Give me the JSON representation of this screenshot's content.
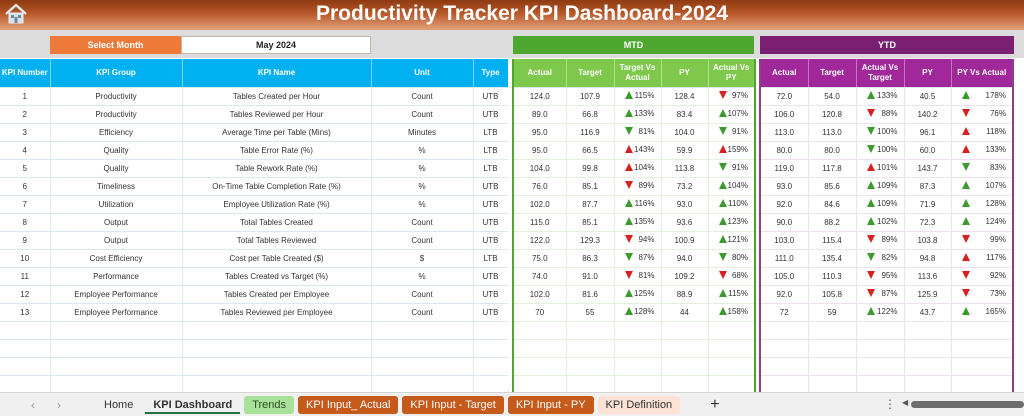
{
  "header": {
    "title": "Productivity Tracker KPI Dashboard-2024",
    "home_icon": "home-icon"
  },
  "month_selector": {
    "label": "Select Month",
    "value": "May 2024"
  },
  "sections": {
    "mtd": "MTD",
    "ytd": "YTD"
  },
  "kpi_columns": [
    "KPI Number",
    "KPI Group",
    "KPI Name",
    "Unit",
    "Type"
  ],
  "mtd_columns": [
    "Actual",
    "Target",
    "Target Vs Actual",
    "PY",
    "Actual Vs PY"
  ],
  "ytd_columns": [
    "Actual",
    "Target",
    "Actual Vs Target",
    "PY",
    "PY Vs Actual"
  ],
  "colors": {
    "title_gradient": "#b8582a",
    "select_month": "#ee7a3a",
    "kpi_header": "#00b0f0",
    "mtd": "#4ea72e",
    "mtd_header": "#7ec84b",
    "ytd": "#7a1f72",
    "ytd_header": "#a0289a",
    "up_good": "#3d9a2f",
    "bad": "#d8201f"
  },
  "rows": [
    {
      "num": "1",
      "group": "Productivity",
      "name": "Tables Created per Hour",
      "unit": "Count",
      "type": "UTB",
      "mtd": {
        "actual": "124.0",
        "target": "107.9",
        "tva": "115%",
        "tva_icon": "up-green",
        "py": "128.4",
        "avp": "97%",
        "avp_icon": "down-red"
      },
      "ytd": {
        "actual": "72.0",
        "target": "54.0",
        "avt": "133%",
        "avt_icon": "up-green",
        "py": "40.5",
        "pva": "178%",
        "pva_icon": "up-green"
      }
    },
    {
      "num": "2",
      "group": "Productivity",
      "name": "Tables Reviewed per Hour",
      "unit": "Count",
      "type": "UTB",
      "mtd": {
        "actual": "89.0",
        "target": "66.8",
        "tva": "133%",
        "tva_icon": "up-green",
        "py": "83.4",
        "avp": "107%",
        "avp_icon": "up-green"
      },
      "ytd": {
        "actual": "106.0",
        "target": "120.8",
        "avt": "88%",
        "avt_icon": "down-red",
        "py": "140.2",
        "pva": "76%",
        "pva_icon": "down-red"
      }
    },
    {
      "num": "3",
      "group": "Efficiency",
      "name": "Average Time per Table (Mins)",
      "unit": "Minutes",
      "type": "LTB",
      "mtd": {
        "actual": "95.0",
        "target": "116.9",
        "tva": "81%",
        "tva_icon": "down-green",
        "py": "104.0",
        "avp": "91%",
        "avp_icon": "down-green"
      },
      "ytd": {
        "actual": "113.0",
        "target": "113.0",
        "avt": "100%",
        "avt_icon": "down-green",
        "py": "96.1",
        "pva": "118%",
        "pva_icon": "up-red"
      }
    },
    {
      "num": "4",
      "group": "Quality",
      "name": "Table Error Rate (%)",
      "unit": "%",
      "type": "LTB",
      "mtd": {
        "actual": "95.0",
        "target": "66.5",
        "tva": "143%",
        "tva_icon": "up-red",
        "py": "59.9",
        "avp": "159%",
        "avp_icon": "up-red"
      },
      "ytd": {
        "actual": "80.0",
        "target": "80.0",
        "avt": "100%",
        "avt_icon": "down-green",
        "py": "60.0",
        "pva": "133%",
        "pva_icon": "up-red"
      }
    },
    {
      "num": "5",
      "group": "Quality",
      "name": "Table Rework Rate (%)",
      "unit": "%",
      "type": "LTB",
      "mtd": {
        "actual": "104.0",
        "target": "99.8",
        "tva": "104%",
        "tva_icon": "up-red",
        "py": "113.8",
        "avp": "91%",
        "avp_icon": "down-green"
      },
      "ytd": {
        "actual": "119.0",
        "target": "117.8",
        "avt": "101%",
        "avt_icon": "up-red",
        "py": "143.7",
        "pva": "83%",
        "pva_icon": "down-green"
      }
    },
    {
      "num": "6",
      "group": "Timeliness",
      "name": "On-Time Table Completion Rate (%)",
      "unit": "%",
      "type": "UTB",
      "mtd": {
        "actual": "76.0",
        "target": "85.1",
        "tva": "89%",
        "tva_icon": "down-red",
        "py": "73.2",
        "avp": "104%",
        "avp_icon": "up-green"
      },
      "ytd": {
        "actual": "93.0",
        "target": "85.6",
        "avt": "109%",
        "avt_icon": "up-green",
        "py": "87.3",
        "pva": "107%",
        "pva_icon": "up-green"
      }
    },
    {
      "num": "7",
      "group": "Utilization",
      "name": "Employee Utilization Rate (%)",
      "unit": "%",
      "type": "UTB",
      "mtd": {
        "actual": "102.0",
        "target": "87.7",
        "tva": "116%",
        "tva_icon": "up-green",
        "py": "93.0",
        "avp": "110%",
        "avp_icon": "up-green"
      },
      "ytd": {
        "actual": "92.0",
        "target": "84.6",
        "avt": "109%",
        "avt_icon": "up-green",
        "py": "71.9",
        "pva": "128%",
        "pva_icon": "up-green"
      }
    },
    {
      "num": "8",
      "group": "Output",
      "name": "Total Tables Created",
      "unit": "Count",
      "type": "UTB",
      "mtd": {
        "actual": "115.0",
        "target": "85.1",
        "tva": "135%",
        "tva_icon": "up-green",
        "py": "93.6",
        "avp": "123%",
        "avp_icon": "up-green"
      },
      "ytd": {
        "actual": "90.0",
        "target": "88.2",
        "avt": "102%",
        "avt_icon": "up-green",
        "py": "72.3",
        "pva": "124%",
        "pva_icon": "up-green"
      }
    },
    {
      "num": "9",
      "group": "Output",
      "name": "Total Tables Reviewed",
      "unit": "Count",
      "type": "UTB",
      "mtd": {
        "actual": "122.0",
        "target": "129.3",
        "tva": "94%",
        "tva_icon": "down-red",
        "py": "100.9",
        "avp": "121%",
        "avp_icon": "up-green"
      },
      "ytd": {
        "actual": "103.0",
        "target": "115.4",
        "avt": "89%",
        "avt_icon": "down-red",
        "py": "103.8",
        "pva": "99%",
        "pva_icon": "down-red"
      }
    },
    {
      "num": "10",
      "group": "Cost Efficiency",
      "name": "Cost per Table Created ($)",
      "unit": "$",
      "type": "LTB",
      "mtd": {
        "actual": "75.0",
        "target": "86.3",
        "tva": "87%",
        "tva_icon": "down-green",
        "py": "94.0",
        "avp": "80%",
        "avp_icon": "down-green"
      },
      "ytd": {
        "actual": "111.0",
        "target": "135.4",
        "avt": "82%",
        "avt_icon": "down-green",
        "py": "94.8",
        "pva": "117%",
        "pva_icon": "up-red"
      }
    },
    {
      "num": "11",
      "group": "Performance",
      "name": "Tables Created vs Target (%)",
      "unit": "%",
      "type": "UTB",
      "mtd": {
        "actual": "74.0",
        "target": "91.0",
        "tva": "81%",
        "tva_icon": "down-red",
        "py": "109.2",
        "avp": "68%",
        "avp_icon": "down-red"
      },
      "ytd": {
        "actual": "105.0",
        "target": "110.3",
        "avt": "95%",
        "avt_icon": "down-red",
        "py": "113.6",
        "pva": "92%",
        "pva_icon": "down-red"
      }
    },
    {
      "num": "12",
      "group": "Employee Performance",
      "name": "Tables Created per Employee",
      "unit": "Count",
      "type": "UTB",
      "mtd": {
        "actual": "102.0",
        "target": "81.6",
        "tva": "125%",
        "tva_icon": "up-green",
        "py": "88.9",
        "avp": "115%",
        "avp_icon": "up-green"
      },
      "ytd": {
        "actual": "92.0",
        "target": "105.8",
        "avt": "87%",
        "avt_icon": "down-red",
        "py": "125.9",
        "pva": "73%",
        "pva_icon": "down-red"
      }
    },
    {
      "num": "13",
      "group": "Employee Performance",
      "name": "Tables Reviewed per Employee",
      "unit": "Count",
      "type": "UTB",
      "mtd": {
        "actual": "70",
        "target": "55",
        "tva": "128%",
        "tva_icon": "up-green",
        "py": "44",
        "avp": "158%",
        "avp_icon": "up-green"
      },
      "ytd": {
        "actual": "72",
        "target": "59",
        "avt": "122%",
        "avt_icon": "up-green",
        "py": "43.7",
        "pva": "165%",
        "pva_icon": "up-green"
      }
    }
  ],
  "empty_rows": 4,
  "sheet_tabs": [
    {
      "label": "Home",
      "style": "plain",
      "active": false
    },
    {
      "label": "KPI Dashboard",
      "style": "plain",
      "active": true
    },
    {
      "label": "Trends",
      "style": "green",
      "active": false
    },
    {
      "label": "KPI Input_ Actual",
      "style": "orange",
      "active": false
    },
    {
      "label": "KPI Input - Target",
      "style": "orange",
      "active": false
    },
    {
      "label": "KPI Input - PY",
      "style": "orange",
      "active": false
    },
    {
      "label": "KPI Definition",
      "style": "peach",
      "active": false
    }
  ],
  "tab_bar": {
    "prev": "‹",
    "next": "›",
    "add": "+",
    "more": "⋮",
    "scroll_left": "◀"
  }
}
